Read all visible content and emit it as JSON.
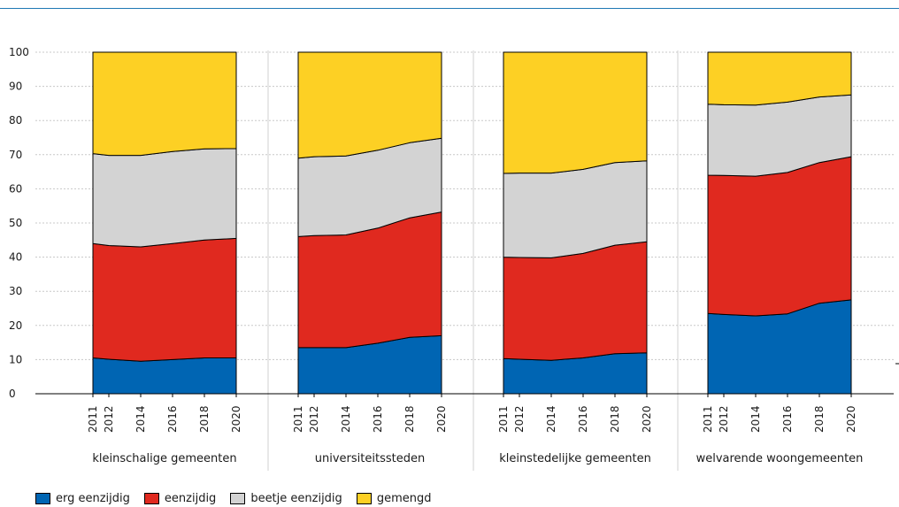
{
  "chart_data": {
    "type": "area",
    "stacked": true,
    "percent_stacked": true,
    "ylim": [
      0,
      100
    ],
    "yticks": [
      0,
      10,
      20,
      30,
      40,
      50,
      60,
      70,
      80,
      90,
      100
    ],
    "grid": true,
    "legend_position": "bottom-left",
    "x_tick_labels": [
      "2011",
      "2012",
      "2014",
      "2016",
      "2018",
      "2020"
    ],
    "panels": [
      {
        "name": "kleinschalige gemeenten",
        "x": [
          2011,
          2012,
          2014,
          2016,
          2018,
          2020
        ],
        "series": [
          {
            "name": "erg eenzijdig",
            "values": [
              10.5,
              10.1,
              9.5,
              10.0,
              10.5,
              10.5
            ]
          },
          {
            "name": "eenzijdig",
            "values": [
              33.5,
              33.3,
              33.5,
              34.0,
              34.5,
              35.0
            ]
          },
          {
            "name": "beetje eenzijdig",
            "values": [
              26.3,
              26.4,
              26.8,
              26.9,
              26.7,
              26.3
            ]
          },
          {
            "name": "gemengd",
            "values": [
              29.7,
              30.2,
              30.2,
              29.1,
              28.3,
              28.2
            ]
          }
        ]
      },
      {
        "name": "universiteitssteden",
        "x": [
          2011,
          2012,
          2014,
          2016,
          2018,
          2020
        ],
        "series": [
          {
            "name": "erg eenzijdig",
            "values": [
              13.5,
              13.5,
              13.5,
              14.8,
              16.5,
              17.0
            ]
          },
          {
            "name": "eenzijdig",
            "values": [
              32.5,
              32.8,
              33.0,
              33.7,
              35.0,
              36.2
            ]
          },
          {
            "name": "beetje eenzijdig",
            "values": [
              23.0,
              23.1,
              23.1,
              22.8,
              22.0,
              21.6
            ]
          },
          {
            "name": "gemengd",
            "values": [
              31.0,
              30.6,
              30.4,
              28.7,
              26.5,
              25.2
            ]
          }
        ]
      },
      {
        "name": "kleinstedelijke gemeenten",
        "x": [
          2011,
          2012,
          2014,
          2016,
          2018,
          2020
        ],
        "series": [
          {
            "name": "erg eenzijdig",
            "values": [
              10.3,
              10.1,
              9.8,
              10.5,
              11.7,
              12.0
            ]
          },
          {
            "name": "eenzijdig",
            "values": [
              29.7,
              29.8,
              30.0,
              30.6,
              31.8,
              32.5
            ]
          },
          {
            "name": "beetje eenzijdig",
            "values": [
              24.5,
              24.7,
              24.8,
              24.6,
              24.2,
              23.7
            ]
          },
          {
            "name": "gemengd",
            "values": [
              35.5,
              35.4,
              35.4,
              34.3,
              32.3,
              31.8
            ]
          }
        ]
      },
      {
        "name": "welvarende woongemeenten",
        "x": [
          2011,
          2012,
          2014,
          2016,
          2018,
          2020
        ],
        "series": [
          {
            "name": "erg eenzijdig",
            "values": [
              23.5,
              23.2,
              22.8,
              23.4,
              26.5,
              27.5
            ]
          },
          {
            "name": "eenzijdig",
            "values": [
              40.5,
              40.7,
              40.9,
              41.4,
              41.2,
              41.9
            ]
          },
          {
            "name": "beetje eenzijdig",
            "values": [
              20.8,
              20.7,
              20.8,
              20.6,
              19.2,
              18.1
            ]
          },
          {
            "name": "gemengd",
            "values": [
              15.2,
              15.4,
              15.5,
              14.6,
              13.1,
              12.5
            ]
          }
        ]
      }
    ],
    "colors": {
      "erg eenzijdig": "#0065b3",
      "eenzijdig": "#e0291f",
      "beetje eenzijdig": "#d3d3d3",
      "gemengd": "#fdd024"
    },
    "legend": [
      "erg eenzijdig",
      "eenzijdig",
      "beetje eenzijdig",
      "gemengd"
    ]
  }
}
